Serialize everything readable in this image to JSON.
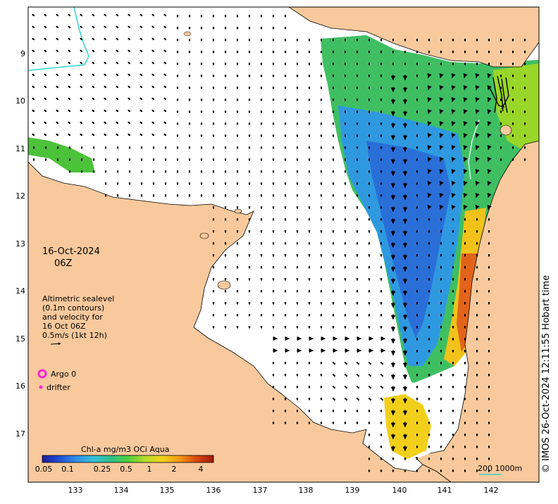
{
  "map": {
    "date": "16-Oct-2024",
    "time": "06Z",
    "legend_lines": [
      "Altimetric sealevel",
      "(0.1m contours)",
      "and velocity for",
      "16 Oct 06Z",
      "0.5m/s (1kt 12h)"
    ],
    "argo_label": "Argo 0",
    "drifter_label": "drifter",
    "credit": "© IMOS 26-Oct-2024 12:11:55 Hobart time",
    "scale_label": "200  1000m",
    "lat_ticks": [
      "9",
      "10",
      "11",
      "12",
      "13",
      "14",
      "15",
      "16",
      "17"
    ],
    "lon_ticks": [
      "133",
      "134",
      "135",
      "136",
      "137",
      "138",
      "139",
      "140",
      "141",
      "142"
    ],
    "colorbar": {
      "title": "Chl-a mg/m3 OCi Aqua",
      "ticks": [
        "0.05",
        "0.1",
        "0.25",
        "0.5",
        "1",
        "2",
        "4"
      ],
      "colors": [
        "#1d1a9c",
        "#1f4fd6",
        "#2f8fe6",
        "#35c0d8",
        "#2fc08a",
        "#4ccf3a",
        "#b6de2a",
        "#f3d21a",
        "#f29a12",
        "#d9480f",
        "#a01a0a"
      ]
    },
    "colors": {
      "land": "#f8c99c",
      "ocean": "#ffffff",
      "coastline": "#000000",
      "argo": "#ff22dd",
      "contour": "#30d5cf"
    }
  }
}
